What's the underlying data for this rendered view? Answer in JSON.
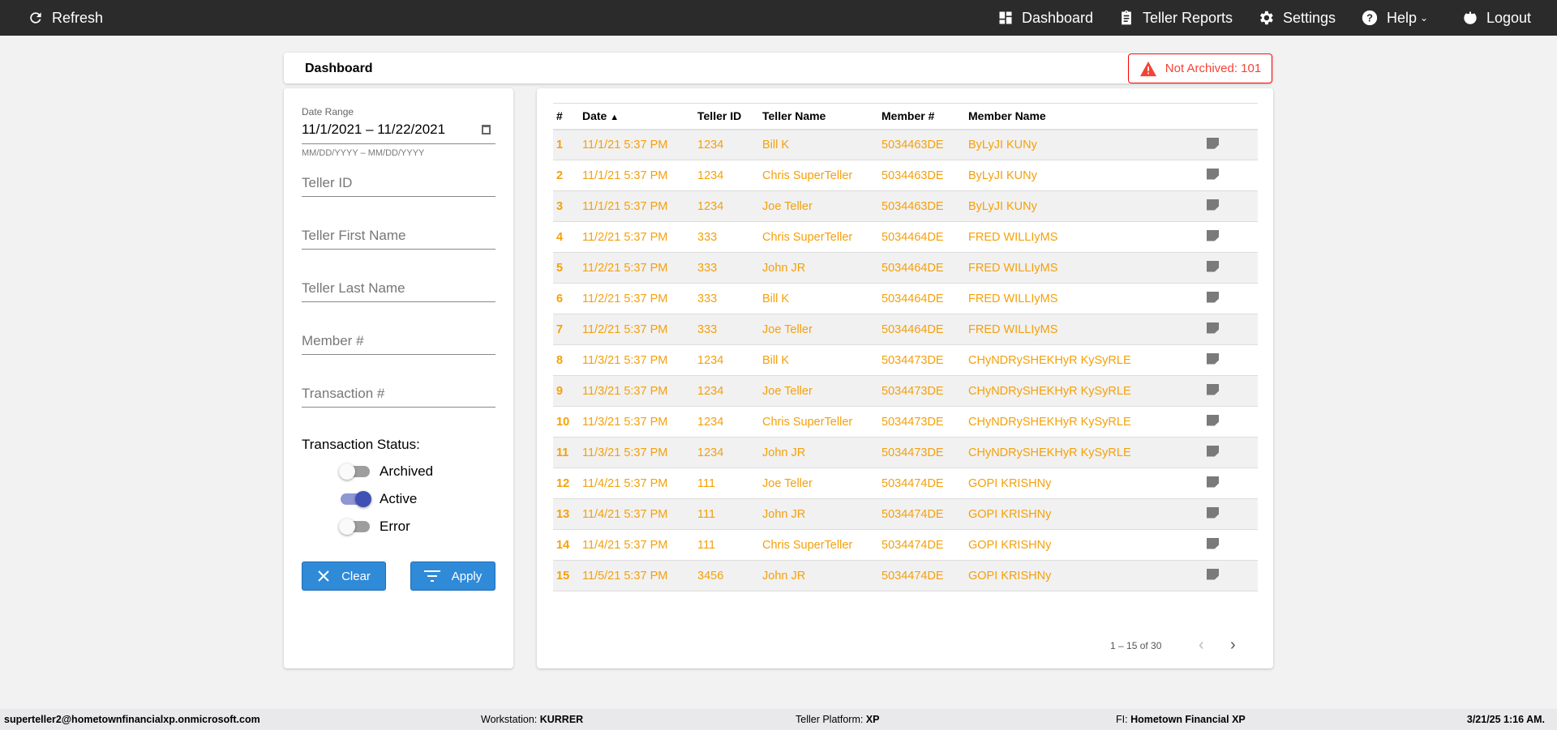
{
  "nav": {
    "refresh": "Refresh",
    "dashboard": "Dashboard",
    "teller_reports": "Teller Reports",
    "settings": "Settings",
    "help": "Help",
    "logout": "Logout"
  },
  "header": {
    "title": "Dashboard",
    "alert": "Not Archived: 101",
    "alert_color": "#f44336"
  },
  "filters": {
    "date_label": "Date Range",
    "date_value": "11/1/2021 – 11/22/2021",
    "date_hint": "MM/DD/YYYY – MM/DD/YYYY",
    "teller_id": "Teller ID",
    "first_name": "Teller First Name",
    "last_name": "Teller Last Name",
    "member": "Member #",
    "transaction": "Transaction #",
    "status_label": "Transaction Status:",
    "statuses": [
      {
        "label": "Archived",
        "on": false
      },
      {
        "label": "Active",
        "on": true
      },
      {
        "label": "Error",
        "on": false
      }
    ],
    "clear": "Clear",
    "apply": "Apply"
  },
  "table": {
    "columns": [
      "#",
      "Date",
      "Teller ID",
      "Teller Name",
      "Member #",
      "Member Name"
    ],
    "sort": "Date ascending",
    "rows": [
      [
        "1",
        "11/1/21 5:37 PM",
        "1234",
        "Bill K",
        "5034463DE",
        "ByLyJI KUNy"
      ],
      [
        "2",
        "11/1/21 5:37 PM",
        "1234",
        "Chris SuperTeller",
        "5034463DE",
        "ByLyJI KUNy"
      ],
      [
        "3",
        "11/1/21 5:37 PM",
        "1234",
        "Joe Teller",
        "5034463DE",
        "ByLyJI KUNy"
      ],
      [
        "4",
        "11/2/21 5:37 PM",
        "333",
        "Chris SuperTeller",
        "5034464DE",
        "FRED WILLIyMS"
      ],
      [
        "5",
        "11/2/21 5:37 PM",
        "333",
        "John JR",
        "5034464DE",
        "FRED WILLIyMS"
      ],
      [
        "6",
        "11/2/21 5:37 PM",
        "333",
        "Bill K",
        "5034464DE",
        "FRED WILLIyMS"
      ],
      [
        "7",
        "11/2/21 5:37 PM",
        "333",
        "Joe Teller",
        "5034464DE",
        "FRED WILLIyMS"
      ],
      [
        "8",
        "11/3/21 5:37 PM",
        "1234",
        "Bill K",
        "5034473DE",
        "CHyNDRySHEKHyR KySyRLE"
      ],
      [
        "9",
        "11/3/21 5:37 PM",
        "1234",
        "Joe Teller",
        "5034473DE",
        "CHyNDRySHEKHyR KySyRLE"
      ],
      [
        "10",
        "11/3/21 5:37 PM",
        "1234",
        "Chris SuperTeller",
        "5034473DE",
        "CHyNDRySHEKHyR KySyRLE"
      ],
      [
        "11",
        "11/3/21 5:37 PM",
        "1234",
        "John JR",
        "5034473DE",
        "CHyNDRySHEKHyR KySyRLE"
      ],
      [
        "12",
        "11/4/21 5:37 PM",
        "111",
        "Joe Teller",
        "5034474DE",
        "GOPI KRISHNy"
      ],
      [
        "13",
        "11/4/21 5:37 PM",
        "111",
        "John JR",
        "5034474DE",
        "GOPI KRISHNy"
      ],
      [
        "14",
        "11/4/21 5:37 PM",
        "111",
        "Chris SuperTeller",
        "5034474DE",
        "GOPI KRISHNy"
      ],
      [
        "15",
        "11/5/21 5:37 PM",
        "3456",
        "John JR",
        "5034474DE",
        "GOPI KRISHNy"
      ]
    ],
    "pagination": "1 – 15 of 30"
  },
  "footer": {
    "user": "superteller2@hometownfinancialxp.onmicrosoft.com",
    "ws_label": "Workstation: ",
    "ws": "KURRER",
    "tp_label": "Teller Platform: ",
    "tp": "XP",
    "fi_label": "FI: ",
    "fi": "Hometown Financial XP",
    "time": "3/21/25 1:16 AM."
  }
}
